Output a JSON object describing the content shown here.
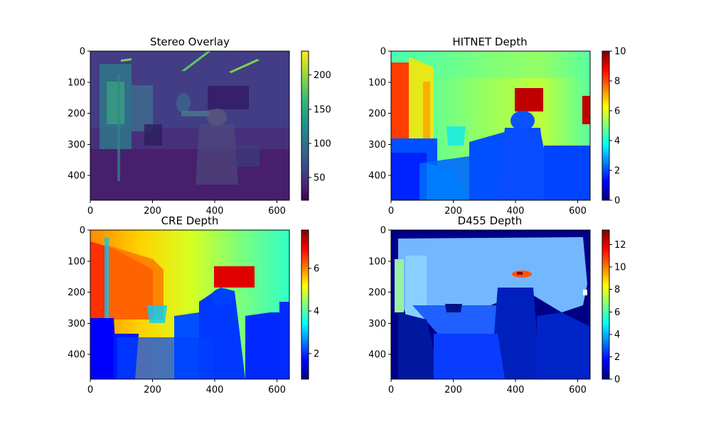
{
  "colors": {
    "viridis": [
      "#440154",
      "#482878",
      "#3e4989",
      "#31688e",
      "#26828e",
      "#1f9e89",
      "#35b779",
      "#6ece58",
      "#b5de2b",
      "#fde725"
    ],
    "jet": [
      "#00007f",
      "#0000ff",
      "#007fff",
      "#00ffff",
      "#7fff7f",
      "#ffff00",
      "#ff7f00",
      "#ff0000",
      "#7f0000"
    ]
  },
  "chart_data": [
    {
      "type": "heatmap",
      "title": "Stereo Overlay",
      "colormap": "viridis",
      "image_extent": [
        0,
        640,
        480,
        0
      ],
      "xticks": [
        0,
        200,
        400,
        600
      ],
      "yticks": [
        0,
        100,
        200,
        300,
        400
      ],
      "colorbar": {
        "min": 17,
        "max": 235,
        "ticks": [
          50,
          100,
          150,
          200
        ]
      }
    },
    {
      "type": "heatmap",
      "title": "HITNET Depth",
      "colormap": "jet",
      "image_extent": [
        0,
        640,
        480,
        0
      ],
      "xticks": [
        0,
        200,
        400,
        600
      ],
      "yticks": [
        0,
        100,
        200,
        300,
        400
      ],
      "colorbar": {
        "min": 0,
        "max": 10,
        "ticks": [
          0,
          2,
          4,
          6,
          8,
          10
        ]
      }
    },
    {
      "type": "heatmap",
      "title": "CRE Depth",
      "colormap": "jet",
      "image_extent": [
        0,
        640,
        480,
        0
      ],
      "xticks": [
        0,
        200,
        400,
        600
      ],
      "yticks": [
        0,
        100,
        200,
        300,
        400
      ],
      "colorbar": {
        "min": 0.8,
        "max": 7.8,
        "ticks": [
          2,
          4,
          6
        ]
      }
    },
    {
      "type": "heatmap",
      "title": "D455 Depth",
      "colormap": "jet",
      "image_extent": [
        0,
        640,
        480,
        0
      ],
      "xticks": [
        0,
        200,
        400,
        600
      ],
      "yticks": [
        0,
        100,
        200,
        300,
        400
      ],
      "colorbar": {
        "min": 0,
        "max": 13.3,
        "ticks": [
          0,
          2,
          4,
          6,
          8,
          10,
          12
        ]
      }
    }
  ]
}
